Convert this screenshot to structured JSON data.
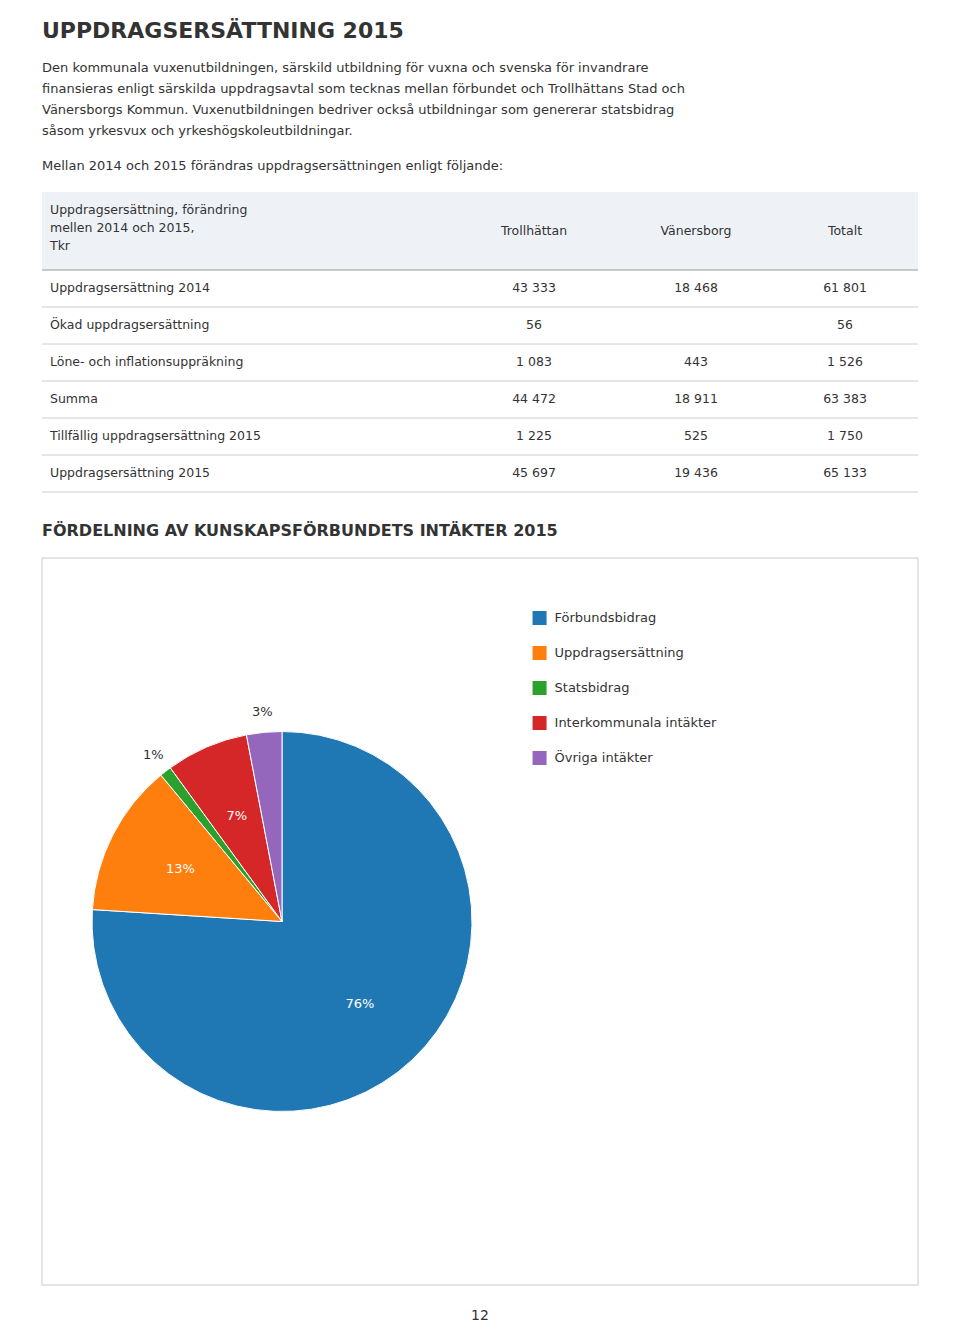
{
  "page": {
    "title": "UPPDRAGSERSÄTTNING 2015",
    "body_lines": [
      "Den kommunala vuxenutbildningen, särskild utbildning för vuxna och svenska för invandrare",
      "finansieras enligt särskilda uppdragsavtal som tecknas mellan förbundet och Trollhättans Stad och",
      "Vänersborgs Kommun. Vuxenutbildningen bedriver också utbildningar som genererar statsbidrag",
      "såsom yrkesvux och yrkeshögskoleutbildningar."
    ],
    "intro_text": "Mellan 2014 och 2015 förändras uppdragsersättningen enligt följande:",
    "table": {
      "header_lines": [
        "Uppdragsersättning, förändring",
        "mellen 2014 och 2015,",
        "Tkr"
      ],
      "columns": [
        "Trollhättan",
        "Vänersborg",
        "Totalt"
      ],
      "rows": [
        {
          "label": "Uppdragsersättning 2014",
          "cells": [
            "43 333",
            "18 468",
            "61 801"
          ]
        },
        {
          "label": "Ökad uppdragsersättning",
          "cells": [
            "56",
            null,
            "56"
          ]
        },
        {
          "label": "Löne- och inflationsuppräkning",
          "cells": [
            "1 083",
            "443",
            "1 526"
          ]
        },
        {
          "label": "Summa",
          "cells": [
            "44 472",
            "18 911",
            "63 383"
          ]
        },
        {
          "label": "Tillfällig uppdragsersättning 2015",
          "cells": [
            "1 225",
            "525",
            "1 750"
          ]
        },
        {
          "label": "Uppdragsersättning 2015",
          "cells": [
            "45 697",
            "19 436",
            "65 133"
          ]
        }
      ]
    },
    "page_number": "12"
  },
  "chart_data": {
    "type": "pie",
    "title": "FÖRDELNING AV KUNSKAPSFÖRBUNDETS INTÄKTER 2015",
    "categories": [
      "Förbundsbidrag",
      "Uppdragsersättning",
      "Statsbidrag",
      "Interkommunala intäkter",
      "Övriga intäkter"
    ],
    "values": [
      76,
      13,
      1,
      7,
      3
    ],
    "value_labels": [
      "76%",
      "13%",
      "1%",
      "7%",
      "3%"
    ],
    "data_labels": true,
    "legend": "right"
  }
}
